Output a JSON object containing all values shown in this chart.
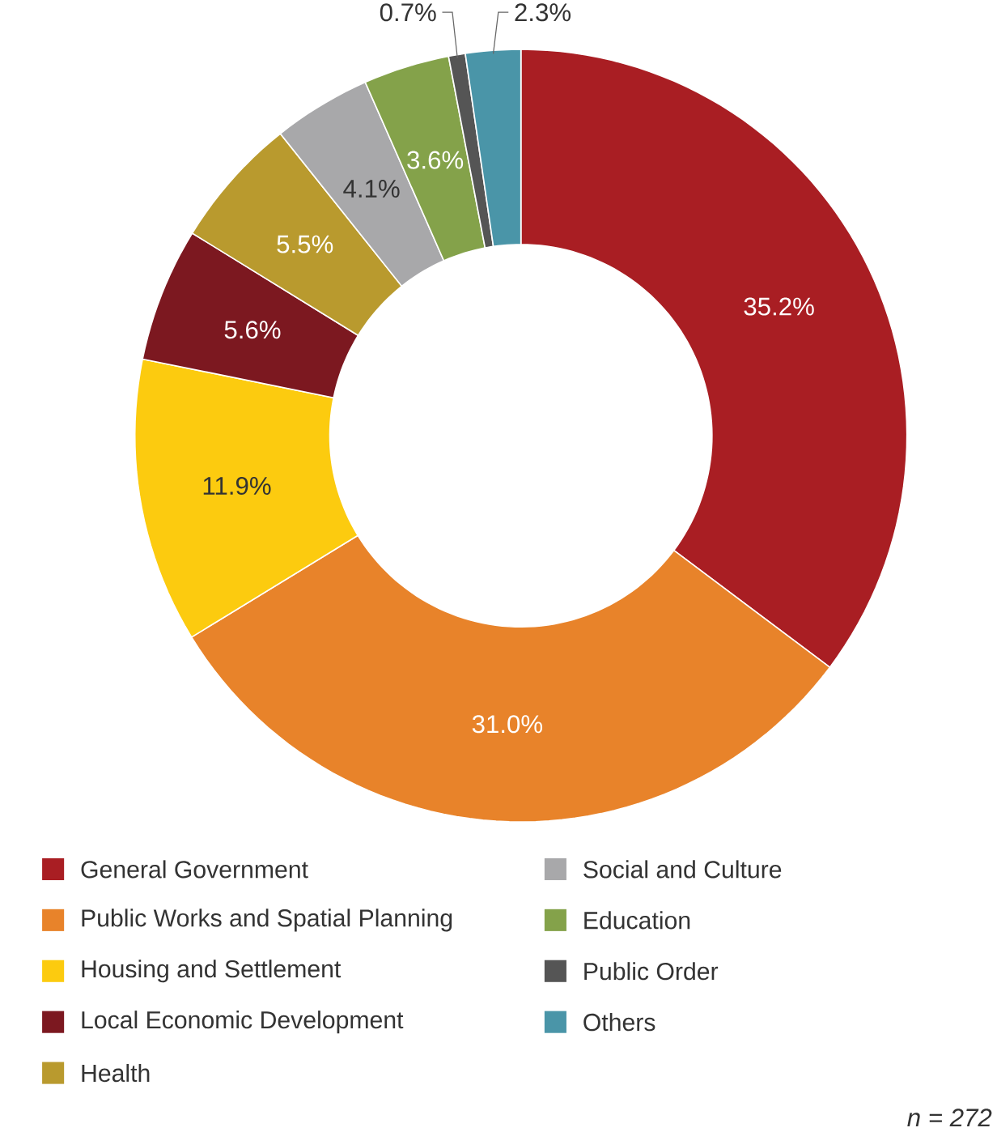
{
  "chart_data": {
    "type": "donut",
    "categories": [
      "General Government",
      "Public Works and Spatial Planning",
      "Housing and Settlement",
      "Local Economic Development",
      "Health",
      "Social and Culture",
      "Education",
      "Public Order",
      "Others"
    ],
    "values": [
      35.2,
      31.0,
      11.9,
      5.6,
      5.5,
      4.1,
      3.6,
      0.7,
      2.3
    ],
    "value_labels": [
      "35.2%",
      "31.0%",
      "11.9%",
      "5.6%",
      "5.5%",
      "4.1%",
      "3.6%",
      "0.7%",
      "2.3%"
    ],
    "colors": [
      "#a91e23",
      "#e8832a",
      "#fccb0f",
      "#7c1820",
      "#b99a2e",
      "#a8a8aa",
      "#84a24a",
      "#555555",
      "#4a95a8"
    ],
    "legend": "bottom",
    "annotations": [
      "n = 272"
    ]
  }
}
